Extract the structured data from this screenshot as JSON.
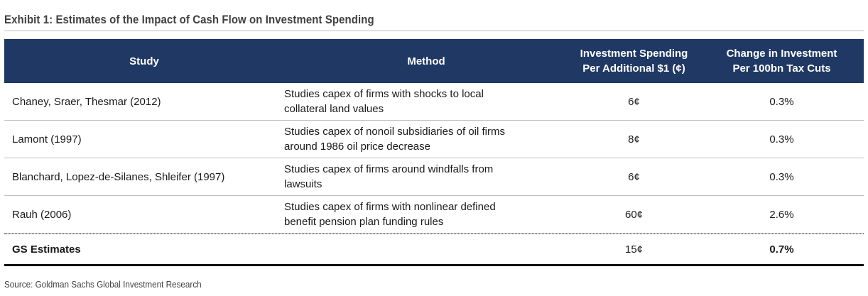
{
  "title": "Exhibit 1: Estimates of the Impact of Cash Flow on Investment Spending",
  "columns": {
    "study": "Study",
    "method": "Method",
    "spend_line1": "Investment Spending",
    "spend_line2": "Per Additional $1 (¢)",
    "change_line1": "Change in Investment",
    "change_line2": "Per 100bn Tax Cuts"
  },
  "rows": [
    {
      "study": "Chaney, Sraer, Thesmar (2012)",
      "method_line1": "Studies capex of firms with shocks to local",
      "method_line2": "collateral land values",
      "spend": "6¢",
      "change": "0.3%"
    },
    {
      "study": "Lamont (1997)",
      "method_line1": "Studies capex of nonoil subsidiaries of oil firms",
      "method_line2": "around 1986 oil price decrease",
      "spend": "8¢",
      "change": "0.3%"
    },
    {
      "study": "Blanchard, Lopez-de-Silanes, Shleifer (1997)",
      "method_line1": "Studies capex  of firms around windfalls from",
      "method_line2": "lawsuits",
      "spend": "6¢",
      "change": "0.3%"
    },
    {
      "study": "Rauh (2006)",
      "method_line1": "Studies capex of firms with nonlinear defined",
      "method_line2": "benefit pension plan funding rules",
      "spend": "60¢",
      "change": "2.6%"
    }
  ],
  "summary": {
    "study": "GS Estimates",
    "spend": "15¢",
    "change": "0.7%"
  },
  "source": "Source: Goldman Sachs Global Investment Research",
  "colors": {
    "header_bg": "#1f3864",
    "header_text": "#ffffff"
  }
}
